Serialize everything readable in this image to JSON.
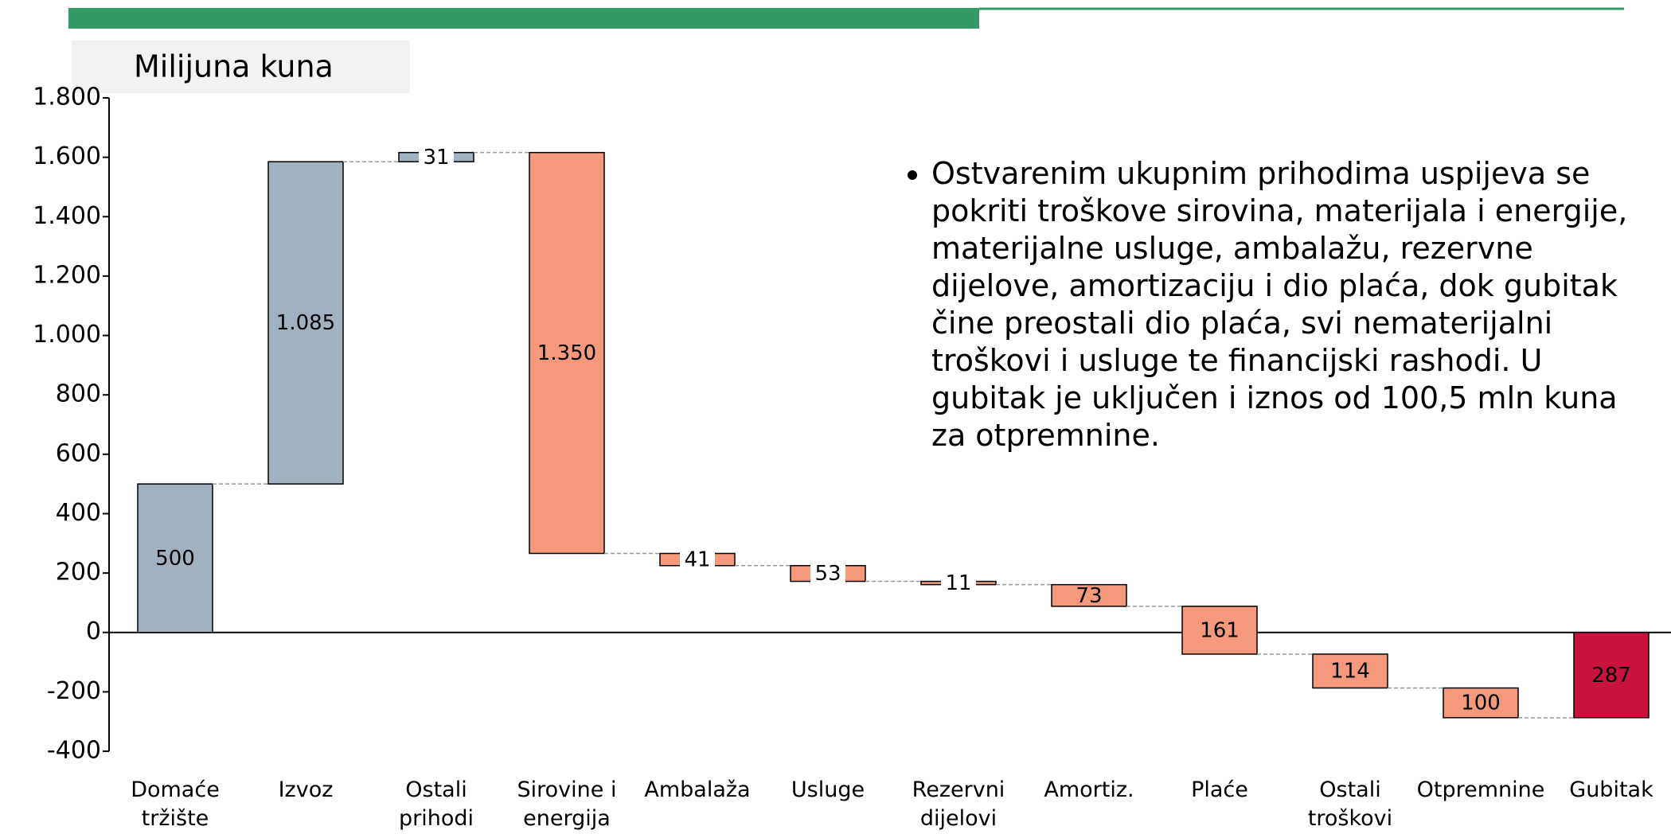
{
  "chart_data": {
    "type": "waterfall",
    "title": "Milijuna kuna",
    "annotation": "Ostvarenim ukupnim prihodima uspijeva se pokriti troškove sirovina, materijala i energije, materijalne usluge, ambalažu, rezervne dijelove, amortizaciju i dio plaća, dok gubitak čine preostali dio plaća, svi nematerijalni troškovi i usluge te financijski rashodi.  U gubitak je uključen i iznos od 100,5 mln kuna za otpremnine.",
    "categories": [
      "Domaće\ntržište",
      "Izvoz",
      "Ostali\nprihodi",
      "Sirovine i\nenergija",
      "Ambalaža",
      "Usluge",
      "Rezervni\ndijelovi",
      "Amortiz.",
      "Plaće",
      "Ostali\ntroškovi",
      "Otpremnine",
      "Gubitak"
    ],
    "values": [
      500,
      1085,
      31,
      -1350,
      -41,
      -53,
      -11,
      -73,
      -161,
      -114,
      -100,
      -287
    ],
    "value_labels": [
      "500",
      "1.085",
      "31",
      "1.350",
      "41",
      "53",
      "11",
      "73",
      "161",
      "114",
      "100",
      "287"
    ],
    "colors": [
      "#a2b1c0",
      "#a2b1c0",
      "#a2b1c0",
      "#f4997b",
      "#f4997b",
      "#f4997b",
      "#f4997b",
      "#f4997b",
      "#f4997b",
      "#f4997b",
      "#f4997b",
      "#c8133f"
    ],
    "total_index": 11,
    "ylim": [
      -400,
      1800
    ],
    "yticks": [
      -400,
      -200,
      0,
      200,
      400,
      600,
      800,
      {
        "value": 1000,
        "label": "1.000"
      },
      {
        "value": 1200,
        "label": "1.200"
      },
      {
        "value": 1400,
        "label": "1.400"
      },
      {
        "value": 1600,
        "label": "1.600"
      },
      {
        "value": 1800,
        "label": "1.800"
      }
    ]
  }
}
